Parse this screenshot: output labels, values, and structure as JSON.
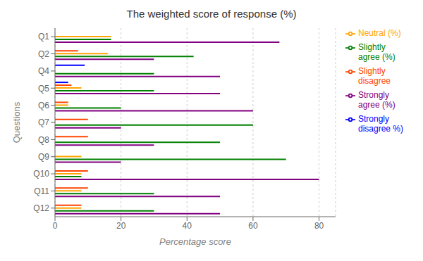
{
  "chart_data": {
    "type": "bar",
    "orientation": "horizontal",
    "title": "The weighted score of response (%)",
    "xlabel": "Percentage score",
    "ylabel": "Questions",
    "categories": [
      "Q1",
      "Q2",
      "Q4",
      "Q5",
      "Q6",
      "Q7",
      "Q8",
      "Q9",
      "Q10",
      "Q11",
      "Q12"
    ],
    "series": [
      {
        "name": "Strongly\ndisagree %)",
        "color": "#0000FF",
        "values": [
          0,
          0,
          9,
          4,
          0,
          0,
          0,
          0,
          0,
          0,
          0
        ]
      },
      {
        "name": "Slightly\ndisagree",
        "color": "#FF4500",
        "values": [
          0,
          7,
          0,
          5,
          4,
          10,
          10,
          0,
          10,
          10,
          8
        ]
      },
      {
        "name": "Neutral (%)",
        "color": "#FFA500",
        "values": [
          17,
          16,
          0,
          8,
          4,
          0,
          0,
          8,
          8,
          8,
          8
        ]
      },
      {
        "name": "Slightly\nagree (%)",
        "color": "#008000",
        "values": [
          17,
          42,
          30,
          30,
          20,
          60,
          50,
          70,
          8,
          30,
          30
        ]
      },
      {
        "name": "Strongly\nagree (%)",
        "color": "#800080",
        "values": [
          68,
          30,
          50,
          50,
          60,
          20,
          30,
          20,
          80,
          50,
          50
        ]
      }
    ],
    "xlim": [
      0,
      85
    ],
    "xticks": [
      0,
      20,
      40,
      60,
      80
    ],
    "grid": true,
    "legend": "right"
  }
}
